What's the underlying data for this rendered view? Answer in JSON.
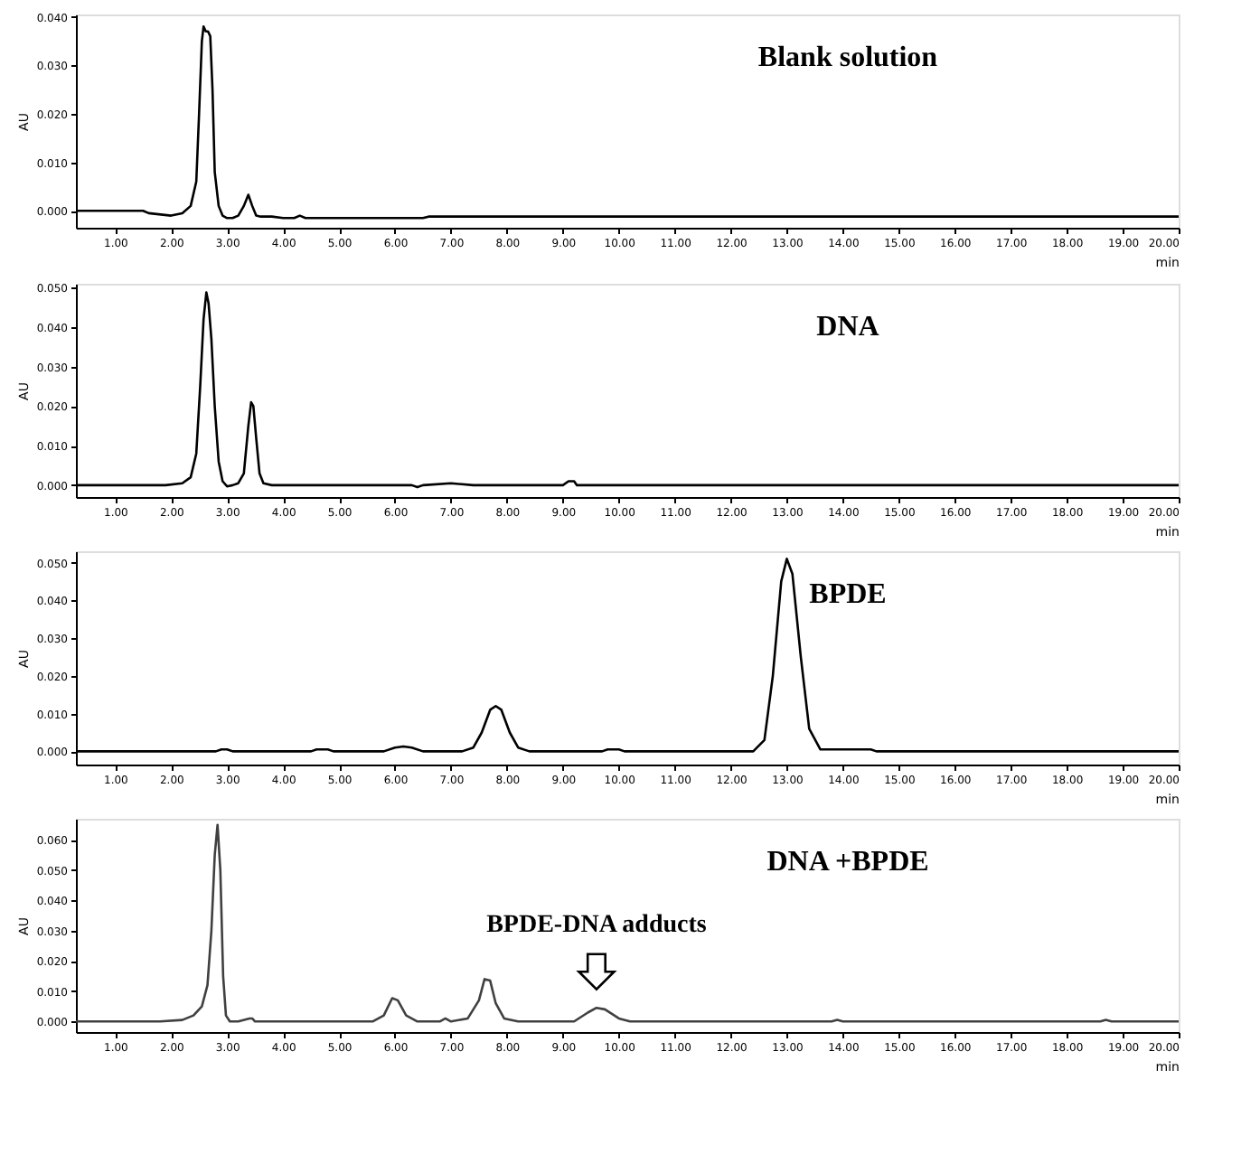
{
  "chart_data": [
    {
      "type": "line",
      "ylabel": "AU",
      "xlabel": "min",
      "annotations": [
        "Blank solution"
      ],
      "xlim": [
        0.3,
        20
      ],
      "ylim": [
        -0.0035,
        0.0405
      ],
      "grid": false,
      "marker": "none",
      "line_style": "solid",
      "xticks": [
        {
          "value": 1,
          "label": "1.00"
        },
        {
          "value": 2,
          "label": "2.00"
        },
        {
          "value": 3,
          "label": "3.00"
        },
        {
          "value": 4,
          "label": "4.00"
        },
        {
          "value": 5,
          "label": "5.00"
        },
        {
          "value": 6,
          "label": "6.00"
        },
        {
          "value": 7,
          "label": "7.00"
        },
        {
          "value": 8,
          "label": "8.00"
        },
        {
          "value": 9,
          "label": "9.00"
        },
        {
          "value": 10,
          "label": "10.00"
        },
        {
          "value": 11,
          "label": "11.00"
        },
        {
          "value": 12,
          "label": "12.00"
        },
        {
          "value": 13,
          "label": "13.00"
        },
        {
          "value": 14,
          "label": "14.00"
        },
        {
          "value": 15,
          "label": "15.00"
        },
        {
          "value": 16,
          "label": "16.00"
        },
        {
          "value": 17,
          "label": "17.00"
        },
        {
          "value": 18,
          "label": "18.00"
        },
        {
          "value": 19,
          "label": "19.00"
        },
        {
          "value": 20,
          "label": "20.00"
        }
      ],
      "yticks": [
        {
          "value": 0,
          "label": "0.000"
        },
        {
          "value": 0.01,
          "label": "0.010"
        },
        {
          "value": 0.02,
          "label": "0.020"
        },
        {
          "value": 0.03,
          "label": "0.030"
        },
        {
          "value": 0.04,
          "label": "0.040"
        }
      ],
      "series": [
        {
          "color": "#000000",
          "x": [
            0.3,
            1.5,
            1.6,
            2.0,
            2.2,
            2.35,
            2.45,
            2.5,
            2.55,
            2.58,
            2.62,
            2.66,
            2.7,
            2.74,
            2.78,
            2.85,
            2.92,
            3.0,
            3.1,
            3.2,
            3.3,
            3.38,
            3.45,
            3.52,
            3.6,
            3.8,
            4.0,
            4.2,
            4.3,
            4.4,
            4.5,
            6.5,
            6.6,
            20
          ],
          "values": [
            0,
            0,
            -0.0005,
            -0.001,
            -0.0005,
            0.001,
            0.006,
            0.02,
            0.035,
            0.038,
            0.037,
            0.037,
            0.036,
            0.025,
            0.008,
            0.001,
            -0.001,
            -0.0015,
            -0.0015,
            -0.001,
            0.001,
            0.0033,
            0.001,
            -0.001,
            -0.0012,
            -0.0012,
            -0.0015,
            -0.0015,
            -0.001,
            -0.0015,
            -0.0015,
            -0.0015,
            -0.0012,
            -0.0012
          ]
        }
      ]
    },
    {
      "type": "line",
      "ylabel": "AU",
      "xlabel": "min",
      "annotations": [
        "DNA"
      ],
      "xlim": [
        0.3,
        20
      ],
      "ylim": [
        -0.003,
        0.051
      ],
      "grid": false,
      "marker": "none",
      "line_style": "solid",
      "xticks": [
        {
          "value": 1,
          "label": "1.00"
        },
        {
          "value": 2,
          "label": "2.00"
        },
        {
          "value": 3,
          "label": "3.00"
        },
        {
          "value": 4,
          "label": "4.00"
        },
        {
          "value": 5,
          "label": "5.00"
        },
        {
          "value": 6,
          "label": "6.00"
        },
        {
          "value": 7,
          "label": "7.00"
        },
        {
          "value": 8,
          "label": "8.00"
        },
        {
          "value": 9,
          "label": "9.00"
        },
        {
          "value": 10,
          "label": "10.00"
        },
        {
          "value": 11,
          "label": "11.00"
        },
        {
          "value": 12,
          "label": "12.00"
        },
        {
          "value": 13,
          "label": "13.00"
        },
        {
          "value": 14,
          "label": "14.00"
        },
        {
          "value": 15,
          "label": "15.00"
        },
        {
          "value": 16,
          "label": "16.00"
        },
        {
          "value": 17,
          "label": "17.00"
        },
        {
          "value": 18,
          "label": "18.00"
        },
        {
          "value": 19,
          "label": "19.00"
        },
        {
          "value": 20,
          "label": "20.00"
        }
      ],
      "yticks": [
        {
          "value": 0,
          "label": "0.000"
        },
        {
          "value": 0.01,
          "label": "0.010"
        },
        {
          "value": 0.02,
          "label": "0.020"
        },
        {
          "value": 0.03,
          "label": "0.030"
        },
        {
          "value": 0.04,
          "label": "0.040"
        },
        {
          "value": 0.05,
          "label": "0.050"
        }
      ],
      "series": [
        {
          "color": "#000000",
          "x": [
            0.3,
            1.9,
            2.2,
            2.35,
            2.45,
            2.52,
            2.58,
            2.63,
            2.67,
            2.72,
            2.78,
            2.85,
            2.92,
            3.0,
            3.1,
            3.2,
            3.3,
            3.38,
            3.43,
            3.47,
            3.52,
            3.58,
            3.65,
            3.8,
            6.3,
            6.4,
            6.5,
            7.0,
            7.4,
            9.0,
            9.1,
            9.2,
            9.25,
            20
          ],
          "values": [
            0,
            0,
            0.0005,
            0.002,
            0.008,
            0.025,
            0.042,
            0.0488,
            0.046,
            0.037,
            0.02,
            0.006,
            0.001,
            -0.0003,
            0,
            0.0005,
            0.003,
            0.015,
            0.021,
            0.02,
            0.012,
            0.003,
            0.0005,
            0,
            0,
            -0.0005,
            0,
            0.0005,
            0,
            0,
            0.001,
            0.001,
            0,
            0
          ]
        }
      ]
    },
    {
      "type": "line",
      "ylabel": "AU",
      "xlabel": "min",
      "annotations": [
        "BPDE"
      ],
      "xlim": [
        0.3,
        20
      ],
      "ylim": [
        -0.0035,
        0.053
      ],
      "grid": false,
      "marker": "none",
      "line_style": "solid",
      "xticks": [
        {
          "value": 1,
          "label": "1.00"
        },
        {
          "value": 2,
          "label": "2.00"
        },
        {
          "value": 3,
          "label": "3.00"
        },
        {
          "value": 4,
          "label": "4.00"
        },
        {
          "value": 5,
          "label": "5.00"
        },
        {
          "value": 6,
          "label": "6.00"
        },
        {
          "value": 7,
          "label": "7.00"
        },
        {
          "value": 8,
          "label": "8.00"
        },
        {
          "value": 9,
          "label": "9.00"
        },
        {
          "value": 10,
          "label": "10.00"
        },
        {
          "value": 11,
          "label": "11.00"
        },
        {
          "value": 12,
          "label": "12.00"
        },
        {
          "value": 13,
          "label": "13.00"
        },
        {
          "value": 14,
          "label": "14.00"
        },
        {
          "value": 15,
          "label": "15.00"
        },
        {
          "value": 16,
          "label": "16.00"
        },
        {
          "value": 17,
          "label": "17.00"
        },
        {
          "value": 18,
          "label": "18.00"
        },
        {
          "value": 19,
          "label": "19.00"
        },
        {
          "value": 20,
          "label": "20.00"
        }
      ],
      "yticks": [
        {
          "value": 0,
          "label": "0.000"
        },
        {
          "value": 0.01,
          "label": "0.010"
        },
        {
          "value": 0.02,
          "label": "0.020"
        },
        {
          "value": 0.03,
          "label": "0.030"
        },
        {
          "value": 0.04,
          "label": "0.040"
        },
        {
          "value": 0.05,
          "label": "0.050"
        }
      ],
      "series": [
        {
          "color": "#000000",
          "x": [
            0.3,
            2.8,
            2.9,
            3.0,
            3.1,
            4.5,
            4.6,
            4.8,
            4.9,
            5.8,
            6.0,
            6.15,
            6.3,
            6.5,
            7.2,
            7.4,
            7.55,
            7.7,
            7.8,
            7.9,
            8.05,
            8.2,
            8.4,
            9.7,
            9.8,
            10.0,
            10.1,
            12.4,
            12.6,
            12.75,
            12.9,
            13.0,
            13.1,
            13.25,
            13.4,
            13.6,
            14.5,
            14.6,
            20
          ],
          "values": [
            0,
            0,
            0.0005,
            0.0005,
            0,
            0,
            0.0005,
            0.0005,
            0,
            0,
            0.001,
            0.0013,
            0.001,
            0,
            0,
            0.001,
            0.005,
            0.011,
            0.012,
            0.011,
            0.005,
            0.001,
            0,
            0,
            0.0005,
            0.0005,
            0,
            0,
            0.003,
            0.02,
            0.045,
            0.051,
            0.047,
            0.025,
            0.006,
            0.0005,
            0.0005,
            0,
            0
          ]
        }
      ]
    },
    {
      "type": "line",
      "ylabel": "AU",
      "xlabel": "min",
      "annotations": [
        "DNA +BPDE",
        {
          "text": "BPDE-DNA adducts",
          "x": 9.6,
          "y": 0.0045
        }
      ],
      "xlim": [
        0.3,
        20
      ],
      "ylim": [
        -0.0035,
        0.067
      ],
      "grid": false,
      "marker": "none",
      "line_style": "solid",
      "xticks": [
        {
          "value": 1,
          "label": "1.00"
        },
        {
          "value": 2,
          "label": "2.00"
        },
        {
          "value": 3,
          "label": "3.00"
        },
        {
          "value": 4,
          "label": "4.00"
        },
        {
          "value": 5,
          "label": "5.00"
        },
        {
          "value": 6,
          "label": "6.00"
        },
        {
          "value": 7,
          "label": "7.00"
        },
        {
          "value": 8,
          "label": "8.00"
        },
        {
          "value": 9,
          "label": "9.00"
        },
        {
          "value": 10,
          "label": "10.00"
        },
        {
          "value": 11,
          "label": "11.00"
        },
        {
          "value": 12,
          "label": "12.00"
        },
        {
          "value": 13,
          "label": "13.00"
        },
        {
          "value": 14,
          "label": "14.00"
        },
        {
          "value": 15,
          "label": "15.00"
        },
        {
          "value": 16,
          "label": "16.00"
        },
        {
          "value": 17,
          "label": "17.00"
        },
        {
          "value": 18,
          "label": "18.00"
        },
        {
          "value": 19,
          "label": "19.00"
        },
        {
          "value": 20,
          "label": "20.00"
        }
      ],
      "yticks": [
        {
          "value": 0,
          "label": "0.000"
        },
        {
          "value": 0.01,
          "label": "0.010"
        },
        {
          "value": 0.02,
          "label": "0.020"
        },
        {
          "value": 0.03,
          "label": "0.030"
        },
        {
          "value": 0.04,
          "label": "0.040"
        },
        {
          "value": 0.05,
          "label": "0.050"
        },
        {
          "value": 0.06,
          "label": "0.060"
        }
      ],
      "series": [
        {
          "color": "#404040",
          "x": [
            0.3,
            1.8,
            2.2,
            2.4,
            2.55,
            2.65,
            2.72,
            2.78,
            2.83,
            2.88,
            2.93,
            2.98,
            3.05,
            3.2,
            3.4,
            3.45,
            3.5,
            5.6,
            5.8,
            5.95,
            6.05,
            6.2,
            6.4,
            6.8,
            6.9,
            7.0,
            7.3,
            7.5,
            7.6,
            7.7,
            7.8,
            7.95,
            8.2,
            9.2,
            9.45,
            9.6,
            9.75,
            10.0,
            10.2,
            13.8,
            13.9,
            14.0,
            18.6,
            18.7,
            18.8,
            20
          ],
          "values": [
            0,
            0,
            0.0005,
            0.002,
            0.005,
            0.012,
            0.03,
            0.055,
            0.065,
            0.05,
            0.015,
            0.002,
            0,
            0,
            0.001,
            0.001,
            0,
            0,
            0.002,
            0.0077,
            0.007,
            0.002,
            0,
            0,
            0.001,
            0,
            0.001,
            0.007,
            0.014,
            0.0135,
            0.006,
            0.001,
            0,
            0,
            0.003,
            0.0045,
            0.004,
            0.001,
            0,
            0,
            0.0005,
            0,
            0,
            0.0005,
            0,
            0
          ]
        }
      ]
    }
  ]
}
